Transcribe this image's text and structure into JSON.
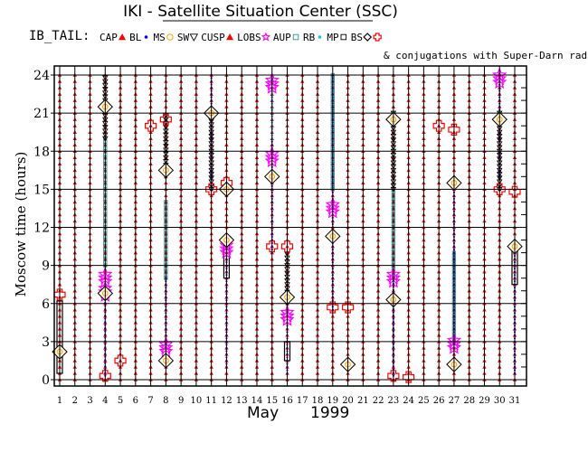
{
  "chart_data": {
    "type": "scatter",
    "title": "IKI - Satellite Situation Center (SSC)",
    "subtitle": "& conjugations with Super-Darn radars",
    "mission_label": "IB_TAIL:",
    "legend": [
      {
        "label": "CAP",
        "symbol": "triangle-up",
        "color": "#ff0000"
      },
      {
        "label": "BL",
        "symbol": "dot",
        "color": "#0000ff"
      },
      {
        "label": "MS",
        "symbol": "circle",
        "color": "#ffa000"
      },
      {
        "label": "SW",
        "symbol": "triangle-down",
        "color": "#000000"
      },
      {
        "label": "CUSP",
        "symbol": "triangle-up",
        "color": "#ff0000"
      },
      {
        "label": "LOBS",
        "symbol": "star",
        "color": "#ff00ff"
      },
      {
        "label": "AUP",
        "symbol": "square",
        "color": "#3c8c8c"
      },
      {
        "label": "RB",
        "symbol": "dot",
        "color": "#00c8ff"
      },
      {
        "label": "MP",
        "symbol": "square",
        "color": "#000000"
      },
      {
        "label": "BS",
        "symbol": "diamond",
        "color": "#000000"
      },
      {
        "label": "",
        "symbol": "cross",
        "color": "#ff0000"
      }
    ],
    "ylabel": "Moscow time (hours)",
    "xlabel_month": "May",
    "xlabel_year": "1999",
    "xlim": [
      1,
      31
    ],
    "ylim": [
      0,
      24
    ],
    "x_ticks": [
      1,
      2,
      3,
      4,
      5,
      6,
      7,
      8,
      9,
      10,
      11,
      12,
      13,
      14,
      15,
      16,
      17,
      18,
      19,
      20,
      21,
      22,
      23,
      24,
      25,
      26,
      27,
      28,
      29,
      30,
      31
    ],
    "y_ticks": [
      0,
      3,
      6,
      9,
      12,
      15,
      18,
      21,
      24
    ],
    "grid": true,
    "series": [
      {
        "day": 1,
        "segments": [
          {
            "region": "BS",
            "start": 0.5,
            "end": 6.2
          }
        ],
        "markers": [
          {
            "type": "diamond",
            "hour": 2.2
          },
          {
            "type": "cross",
            "hour": 6.7
          }
        ]
      },
      {
        "day": 4,
        "segments": [
          {
            "region": "BL",
            "start": 0.3,
            "end": 6.5
          },
          {
            "region": "AUP",
            "start": 9,
            "end": 19
          },
          {
            "region": "SW",
            "start": 19,
            "end": 24
          }
        ],
        "markers": [
          {
            "type": "star",
            "hour": 8
          },
          {
            "type": "star",
            "hour": 6.9
          },
          {
            "type": "diamond",
            "hour": 21.5
          },
          {
            "type": "diamond",
            "hour": 6.8
          },
          {
            "type": "cross",
            "hour": 0.3
          }
        ]
      },
      {
        "day": 5,
        "segments": [],
        "markers": [
          {
            "type": "cross",
            "hour": 1.5
          }
        ]
      },
      {
        "day": 7,
        "segments": [],
        "markers": [
          {
            "type": "cross",
            "hour": 20
          }
        ]
      },
      {
        "day": 8,
        "segments": [
          {
            "region": "BL",
            "start": 1.5,
            "end": 8
          },
          {
            "region": "AUP",
            "start": 8,
            "end": 14
          },
          {
            "region": "SW",
            "start": 16,
            "end": 21
          }
        ],
        "markers": [
          {
            "type": "star",
            "hour": 2.5
          },
          {
            "type": "diamond",
            "hour": 1.5
          },
          {
            "type": "diamond",
            "hour": 16.5
          },
          {
            "type": "cross",
            "hour": 20.5
          }
        ]
      },
      {
        "day": 11,
        "segments": [
          {
            "region": "BL",
            "start": 15,
            "end": 24
          },
          {
            "region": "SW",
            "start": 15,
            "end": 21
          }
        ],
        "markers": [
          {
            "type": "diamond",
            "hour": 21
          },
          {
            "type": "cross",
            "hour": 15
          }
        ]
      },
      {
        "day": 12,
        "segments": [
          {
            "region": "BL",
            "start": 1,
            "end": 11
          },
          {
            "region": "MP",
            "start": 8,
            "end": 11
          }
        ],
        "markers": [
          {
            "type": "star",
            "hour": 10.3
          },
          {
            "type": "cross",
            "hour": 15.5
          },
          {
            "type": "diamond",
            "hour": 15
          },
          {
            "type": "diamond",
            "hour": 11
          }
        ]
      },
      {
        "day": 15,
        "segments": [
          {
            "region": "BL",
            "start": 10,
            "end": 24
          },
          {
            "region": "RB",
            "start": 19,
            "end": 24
          }
        ],
        "markers": [
          {
            "type": "star",
            "hour": 17.5
          },
          {
            "type": "star",
            "hour": 23.3
          },
          {
            "type": "diamond",
            "hour": 16
          },
          {
            "type": "cross",
            "hour": 10.5
          }
        ]
      },
      {
        "day": 16,
        "segments": [
          {
            "region": "MP",
            "start": 1.5,
            "end": 3
          },
          {
            "region": "BL",
            "start": 0.5,
            "end": 6
          },
          {
            "region": "SW",
            "start": 6,
            "end": 10
          }
        ],
        "markers": [
          {
            "type": "star",
            "hour": 5
          },
          {
            "type": "diamond",
            "hour": 6.5
          },
          {
            "type": "cross",
            "hour": 10.5
          }
        ]
      },
      {
        "day": 19,
        "segments": [
          {
            "region": "BL",
            "start": 5.5,
            "end": 24
          },
          {
            "region": "AUP",
            "start": 15,
            "end": 24
          }
        ],
        "markers": [
          {
            "type": "star",
            "hour": 13.5
          },
          {
            "type": "diamond",
            "hour": 11.3
          },
          {
            "type": "cross",
            "hour": 5.7
          }
        ]
      },
      {
        "day": 20,
        "segments": [],
        "markers": [
          {
            "type": "cross",
            "hour": 5.7
          },
          {
            "type": "diamond",
            "hour": 1.2
          }
        ]
      },
      {
        "day": 23,
        "segments": [
          {
            "region": "BL",
            "start": 0.3,
            "end": 8
          },
          {
            "region": "AUP",
            "start": 8,
            "end": 15
          },
          {
            "region": "SW",
            "start": 15,
            "end": 21
          }
        ],
        "markers": [
          {
            "type": "star",
            "hour": 8
          },
          {
            "type": "diamond",
            "hour": 20.5
          },
          {
            "type": "diamond",
            "hour": 6.3
          },
          {
            "type": "cross",
            "hour": 0.3
          }
        ]
      },
      {
        "day": 24,
        "segments": [],
        "markers": [
          {
            "type": "cross",
            "hour": 0.2
          }
        ]
      },
      {
        "day": 26,
        "segments": [],
        "markers": [
          {
            "type": "cross",
            "hour": 20
          }
        ]
      },
      {
        "day": 27,
        "segments": [
          {
            "region": "BL",
            "start": 1,
            "end": 15
          },
          {
            "region": "AUP",
            "start": 3,
            "end": 10
          }
        ],
        "markers": [
          {
            "type": "star",
            "hour": 2.8
          },
          {
            "type": "diamond",
            "hour": 1.2
          },
          {
            "type": "diamond",
            "hour": 15.5
          },
          {
            "type": "cross",
            "hour": 19.7
          }
        ]
      },
      {
        "day": 30,
        "segments": [
          {
            "region": "BL",
            "start": 15,
            "end": 24
          },
          {
            "region": "SW",
            "start": 15,
            "end": 21
          }
        ],
        "markers": [
          {
            "type": "star",
            "hour": 23.7
          },
          {
            "type": "diamond",
            "hour": 20.5
          },
          {
            "type": "cross",
            "hour": 15
          }
        ]
      },
      {
        "day": 31,
        "segments": [
          {
            "region": "BL",
            "start": 0.5,
            "end": 10
          },
          {
            "region": "MP",
            "start": 7.5,
            "end": 10.5
          }
        ],
        "markers": [
          {
            "type": "diamond",
            "hour": 10.5
          },
          {
            "type": "cross",
            "hour": 14.8
          }
        ]
      }
    ]
  }
}
